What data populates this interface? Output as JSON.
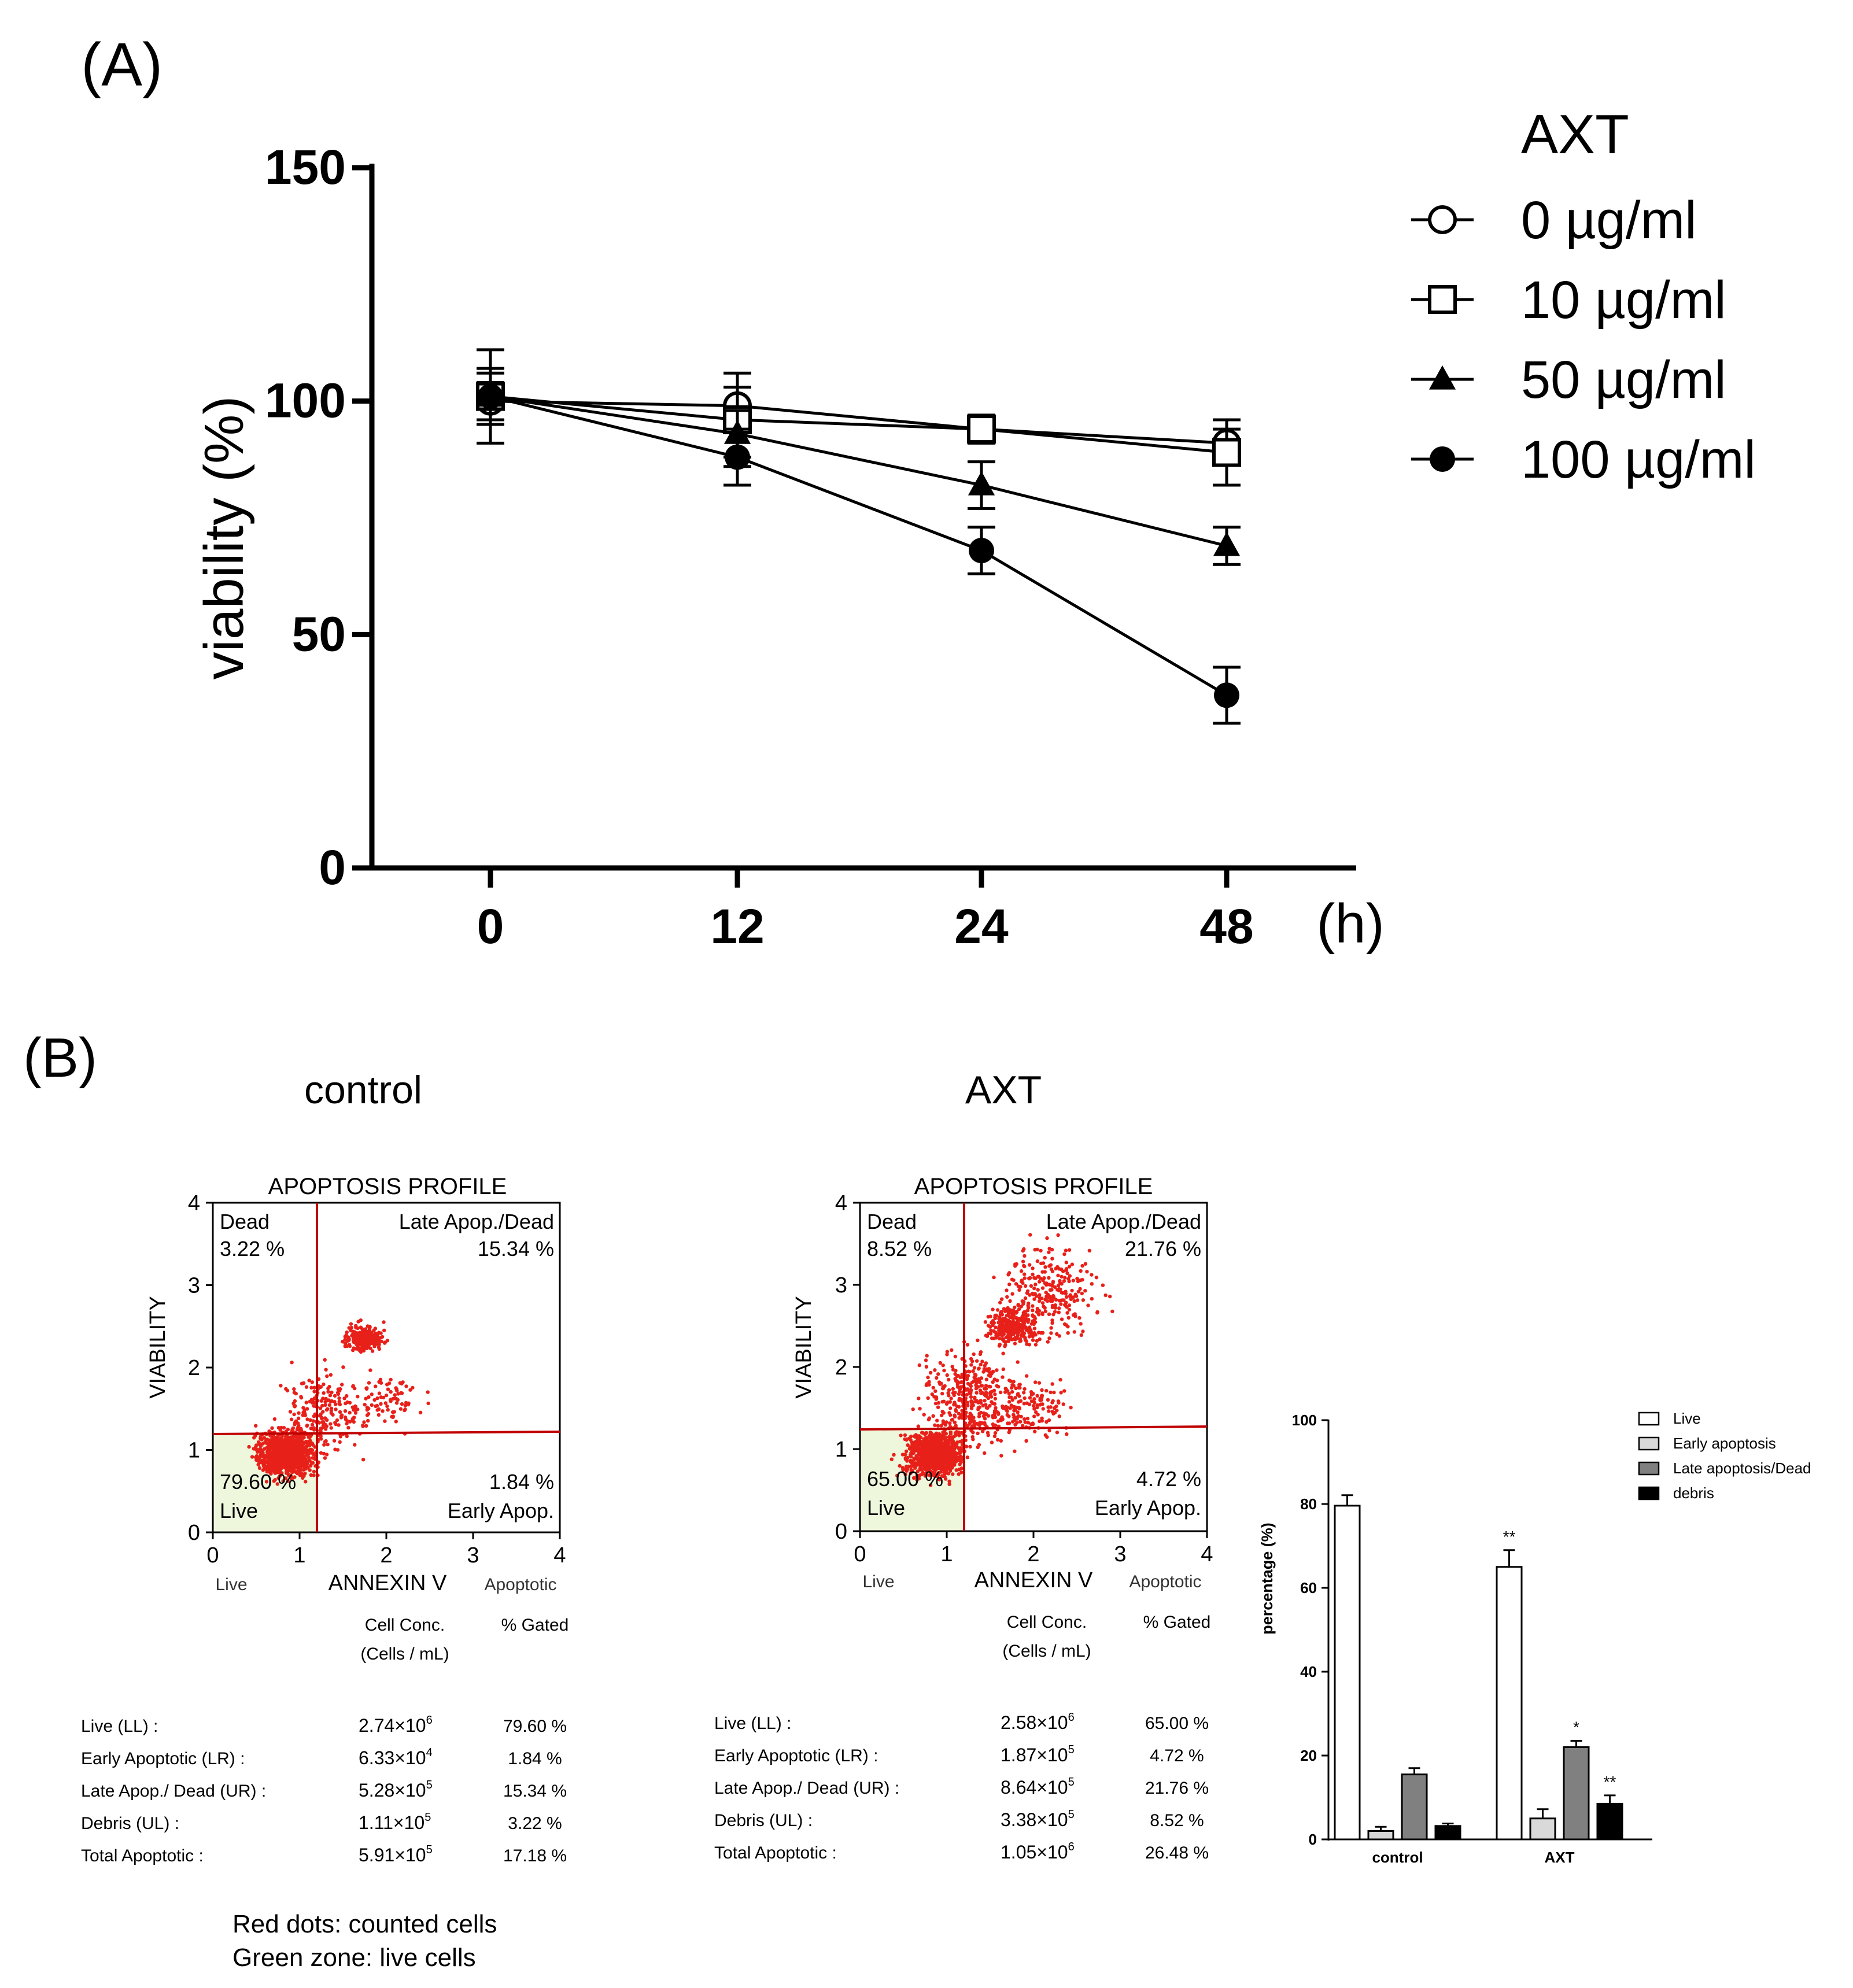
{
  "panel_a": {
    "label": "(A)",
    "legend_title": "AXT",
    "x_unit": "(h)"
  },
  "panel_b": {
    "label": "(B)",
    "footnote_1": "Red dots: counted cells",
    "footnote_2": "Green zone: live cells",
    "flow_panels": [
      {
        "condition": "control",
        "plot_title": "APOPTOSIS PROFILE",
        "x_axis_label": "ANNEXIN V",
        "y_axis_label": "VIABILITY",
        "x_left_label": "Live",
        "x_right_label": "Apoptotic",
        "ticks": [
          "0",
          "1",
          "2",
          "3",
          "4"
        ],
        "q_dead_label": "Dead",
        "q_dead_pct": "3.22 %",
        "q_late_label": "Late Apop./Dead",
        "q_late_pct": "15.34 %",
        "q_live_label": "Live",
        "q_live_pct": "79.60 %",
        "q_early_label": "Early Apop.",
        "q_early_pct": "1.84 %",
        "table": {
          "head_conc_1": "Cell Conc.",
          "head_conc_2": "(Cells / mL)",
          "head_gated": "% Gated",
          "rows": [
            {
              "label": "Live (LL) :",
              "conc_base": "2.74×10",
              "conc_exp": "6",
              "gated": "79.60 %"
            },
            {
              "label": "Early Apoptotic (LR) :",
              "conc_base": "6.33×10",
              "conc_exp": "4",
              "gated": "1.84 %"
            },
            {
              "label": "Late Apop./ Dead (UR) :",
              "conc_base": "5.28×10",
              "conc_exp": "5",
              "gated": "15.34 %"
            },
            {
              "label": "Debris (UL) :",
              "conc_base": "1.11×10",
              "conc_exp": "5",
              "gated": "3.22 %"
            },
            {
              "label": "Total Apoptotic :",
              "conc_base": "5.91×10",
              "conc_exp": "5",
              "gated": "17.18 %"
            }
          ]
        }
      },
      {
        "condition": "AXT",
        "plot_title": "APOPTOSIS PROFILE",
        "x_axis_label": "ANNEXIN V",
        "y_axis_label": "VIABILITY",
        "x_left_label": "Live",
        "x_right_label": "Apoptotic",
        "ticks": [
          "0",
          "1",
          "2",
          "3",
          "4"
        ],
        "q_dead_label": "Dead",
        "q_dead_pct": "8.52 %",
        "q_late_label": "Late Apop./Dead",
        "q_late_pct": "21.76 %",
        "q_live_label": "Live",
        "q_live_pct": "65.00 %",
        "q_early_label": "Early Apop.",
        "q_early_pct": "4.72 %",
        "table": {
          "head_conc_1": "Cell Conc.",
          "head_conc_2": "(Cells / mL)",
          "head_gated": "% Gated",
          "rows": [
            {
              "label": "Live (LL) :",
              "conc_base": "2.58×10",
              "conc_exp": "6",
              "gated": "65.00 %"
            },
            {
              "label": "Early Apoptotic (LR) :",
              "conc_base": "1.87×10",
              "conc_exp": "5",
              "gated": "4.72 %"
            },
            {
              "label": "Late Apop./ Dead (UR) :",
              "conc_base": "8.64×10",
              "conc_exp": "5",
              "gated": "21.76 %"
            },
            {
              "label": "Debris (UL) :",
              "conc_base": "3.38×10",
              "conc_exp": "5",
              "gated": "8.52 %"
            },
            {
              "label": "Total Apoptotic :",
              "conc_base": "1.05×10",
              "conc_exp": "6",
              "gated": "26.48 %"
            }
          ]
        }
      }
    ]
  },
  "chart_data": [
    {
      "type": "line",
      "title": "",
      "xlabel": "",
      "ylabel": "viability (%)",
      "x_unit_label": "(h)",
      "x": [
        0,
        12,
        24,
        48
      ],
      "x_tick_labels": [
        "0",
        "12",
        "24",
        "48"
      ],
      "y_ticks": [
        "0",
        "50",
        "100",
        "150"
      ],
      "ylim": [
        0,
        150
      ],
      "legend_title": "AXT",
      "legend_position": "right",
      "series": [
        {
          "name": "0 µg/ml",
          "marker": "open-circle",
          "values": [
            100,
            99,
            94,
            91
          ],
          "errors": [
            4,
            4,
            2,
            3
          ]
        },
        {
          "name": "10  µg/ml",
          "marker": "open-square",
          "values": [
            101,
            96,
            94,
            89
          ],
          "errors": [
            5,
            10,
            3,
            7
          ]
        },
        {
          "name": "50 µg/ml",
          "marker": "filled-triangle",
          "values": [
            101,
            93,
            82,
            69
          ],
          "errors": [
            6,
            5,
            5,
            4
          ]
        },
        {
          "name": "100 µg/ml",
          "marker": "filled-circle",
          "values": [
            101,
            88,
            68,
            37
          ],
          "errors": [
            10,
            6,
            5,
            6
          ]
        }
      ]
    },
    {
      "type": "bar",
      "title": "",
      "xlabel": "",
      "ylabel": "percentage (%)",
      "categories": [
        "control",
        "AXT"
      ],
      "y_ticks": [
        "0",
        "20",
        "40",
        "60",
        "80",
        "100"
      ],
      "ylim": [
        0,
        100
      ],
      "legend_position": "top-right",
      "series": [
        {
          "name": "Live",
          "color": "#ffffff",
          "values": [
            79.6,
            65.0
          ],
          "errors": [
            2.5,
            4.0
          ],
          "sig": [
            "",
            "**"
          ]
        },
        {
          "name": "Early apoptosis",
          "color": "#d9d9d9",
          "values": [
            2.0,
            5.0
          ],
          "errors": [
            1.0,
            2.2
          ],
          "sig": [
            "",
            ""
          ]
        },
        {
          "name": "Late apoptosis/Dead",
          "color": "#808080",
          "values": [
            15.5,
            22.0
          ],
          "errors": [
            1.5,
            1.5
          ],
          "sig": [
            "",
            "*"
          ]
        },
        {
          "name": "debris",
          "color": "#000000",
          "values": [
            3.2,
            8.5
          ],
          "errors": [
            0.6,
            2.0
          ],
          "sig": [
            "",
            "**"
          ]
        }
      ]
    }
  ]
}
